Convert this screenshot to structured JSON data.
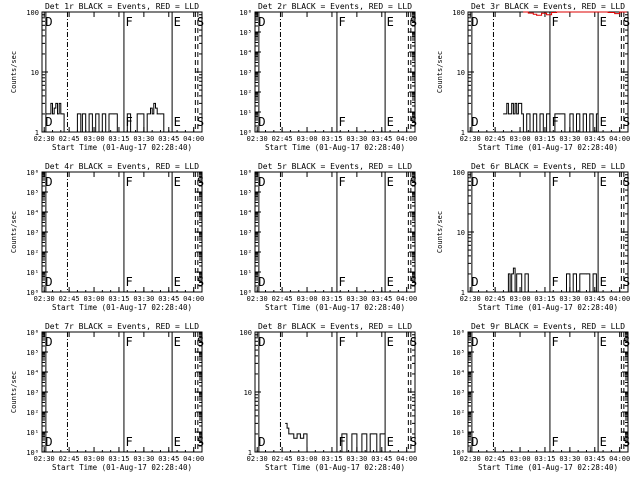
{
  "figure": {
    "xlabel": "Start Time (01-Aug-17 02:28:40)",
    "xticks": [
      "02:30",
      "02:45",
      "03:00",
      "03:15",
      "03:30",
      "03:45",
      "04:00"
    ],
    "vertical_markers": [
      {
        "label": "D",
        "time": "02:31",
        "style": "solid"
      },
      {
        "label": "",
        "time": "02:44",
        "style": "dash-dot"
      },
      {
        "label": "F",
        "time": "03:18",
        "style": "solid"
      },
      {
        "label": "E",
        "time": "03:47",
        "style": "solid"
      },
      {
        "label": "S",
        "time": "04:01",
        "style": "dashed"
      },
      {
        "label": "",
        "time": "04:02.5",
        "style": "dashed"
      }
    ],
    "colors": {
      "events": "#000000",
      "lld": "#dd0000"
    }
  },
  "chart_data": [
    {
      "type": "line",
      "title": "Det 1r BLACK = Events, RED = LLD",
      "ylabel": "Counts/sec",
      "yscale": "log",
      "ylim": [
        1,
        100
      ],
      "yticks": [
        "1",
        "10",
        "100"
      ],
      "xlim": [
        "02:28:40",
        "04:05"
      ],
      "series": [
        {
          "name": "Events",
          "color": "#000000",
          "x": [
            "02:31",
            "02:34",
            "02:35",
            "02:36",
            "02:37",
            "02:38",
            "02:39",
            "02:40",
            "02:41",
            "02:42",
            "02:48",
            "02:50",
            "02:52",
            "02:53",
            "02:55",
            "02:57",
            "02:59",
            "03:01",
            "03:03",
            "03:05",
            "03:07",
            "03:09",
            "03:12",
            "03:14",
            "03:18",
            "03:20",
            "03:22",
            "03:24",
            "03:26",
            "03:28",
            "03:30",
            "03:32",
            "03:34",
            "03:35",
            "03:36",
            "03:37",
            "03:38",
            "03:40",
            "03:42",
            "03:44"
          ],
          "y": [
            2,
            3,
            2,
            2.5,
            3,
            2,
            3,
            2,
            2,
            1,
            1,
            2,
            1,
            2,
            1,
            2,
            1,
            2,
            1,
            2,
            1,
            2,
            2,
            1,
            1,
            2,
            1,
            1,
            2,
            2,
            1,
            2,
            2.5,
            2,
            3,
            2.5,
            2,
            2,
            1,
            1
          ]
        }
      ]
    },
    {
      "type": "line",
      "title": "Det 2r BLACK = Events, RED = LLD",
      "ylabel": "",
      "yscale": "log",
      "ylim": [
        1,
        1000000
      ],
      "yticks": [
        "10⁰",
        "10¹",
        "10²",
        "10³",
        "10⁴",
        "10⁵",
        "10⁶"
      ],
      "xlim": [
        "02:28:40",
        "04:05"
      ],
      "series": []
    },
    {
      "type": "line",
      "title": "Det 3r BLACK = Events, RED = LLD",
      "ylabel": "Counts/sec",
      "yscale": "log",
      "ylim": [
        1,
        100
      ],
      "yticks": [
        "1",
        "10",
        "100"
      ],
      "xlim": [
        "02:28:40",
        "04:05"
      ],
      "series": [
        {
          "name": "Events",
          "color": "#000000",
          "x": [
            "02:50",
            "02:52",
            "02:53",
            "02:55",
            "02:56",
            "02:57",
            "02:58",
            "02:59",
            "03:00",
            "03:01",
            "03:02",
            "03:04",
            "03:06",
            "03:08",
            "03:10",
            "03:12",
            "03:14",
            "03:16",
            "03:18",
            "03:21",
            "03:24",
            "03:27",
            "03:30",
            "03:32",
            "03:34",
            "03:36",
            "03:38",
            "03:40",
            "03:42",
            "03:44",
            "03:46"
          ],
          "y": [
            2,
            3,
            2,
            3,
            2,
            3,
            2,
            3,
            3,
            2,
            1,
            2,
            1,
            2,
            1,
            2,
            1,
            2,
            1,
            2,
            2,
            1,
            2,
            1,
            2,
            1,
            2,
            1,
            2,
            1,
            2
          ]
        },
        {
          "name": "LLD",
          "color": "#dd0000",
          "x": [
            "03:02",
            "03:05",
            "03:08",
            "03:10",
            "03:13",
            "03:16",
            "03:19",
            "03:22",
            "03:25",
            "03:28",
            "03:31",
            "03:34",
            "03:37",
            "03:40",
            "03:43",
            "03:46",
            "03:49",
            "03:53",
            "03:57",
            "04:00",
            "04:03"
          ],
          "y": [
            100,
            96,
            92,
            88,
            95,
            90,
            98,
            100,
            100,
            100,
            100,
            100,
            100,
            100,
            100,
            100,
            100,
            98,
            94,
            100,
            100
          ]
        }
      ]
    },
    {
      "type": "line",
      "title": "Det 4r BLACK = Events, RED = LLD",
      "ylabel": "Counts/sec",
      "yscale": "log",
      "ylim": [
        1,
        1000000
      ],
      "yticks": [
        "10⁰",
        "10¹",
        "10²",
        "10³",
        "10⁴",
        "10⁵",
        "10⁶"
      ],
      "xlim": [
        "02:28:40",
        "04:05"
      ],
      "series": []
    },
    {
      "type": "line",
      "title": "Det 5r BLACK = Events, RED = LLD",
      "ylabel": "",
      "yscale": "log",
      "ylim": [
        1,
        1000000
      ],
      "yticks": [
        "10⁰",
        "10¹",
        "10²",
        "10³",
        "10⁴",
        "10⁵",
        "10⁶"
      ],
      "xlim": [
        "02:28:40",
        "04:05"
      ],
      "series": []
    },
    {
      "type": "line",
      "title": "Det 6r BLACK = Events, RED = LLD",
      "ylabel": "Counts/sec",
      "yscale": "log",
      "ylim": [
        1,
        100
      ],
      "yticks": [
        "1",
        "10",
        "100"
      ],
      "xlim": [
        "02:28:40",
        "04:05"
      ],
      "series": [
        {
          "name": "Events",
          "color": "#000000",
          "x": [
            "02:51",
            "02:53",
            "02:54",
            "02:55",
            "02:56",
            "02:57",
            "02:58",
            "02:59",
            "03:01",
            "03:03",
            "03:05",
            "03:07",
            "03:28",
            "03:30",
            "03:32",
            "03:34",
            "03:36",
            "03:40",
            "03:42",
            "03:44",
            "03:46"
          ],
          "y": [
            1,
            2,
            1,
            2,
            2.5,
            1,
            2,
            2,
            1,
            2,
            1,
            1,
            2,
            1,
            2,
            1,
            2,
            2,
            1,
            2,
            1
          ]
        }
      ]
    },
    {
      "type": "line",
      "title": "Det 7r BLACK = Events, RED = LLD",
      "ylabel": "Counts/sec",
      "yscale": "log",
      "ylim": [
        1,
        1000000
      ],
      "yticks": [
        "10⁰",
        "10¹",
        "10²",
        "10³",
        "10⁴",
        "10⁵",
        "10⁶"
      ],
      "xlim": [
        "02:28:40",
        "04:05"
      ],
      "series": []
    },
    {
      "type": "line",
      "title": "Det 8r BLACK = Events, RED = LLD",
      "ylabel": "",
      "yscale": "log",
      "ylim": [
        1,
        100
      ],
      "yticks": [
        "1",
        "10",
        "100"
      ],
      "xlim": [
        "02:28:40",
        "04:05"
      ],
      "series": [
        {
          "name": "Events",
          "color": "#000000",
          "x": [
            "02:47",
            "02:48",
            "02:49",
            "02:50",
            "02:52",
            "02:54",
            "02:56",
            "02:58",
            "03:00",
            "03:02",
            "03:05",
            "03:08",
            "03:12",
            "03:15",
            "03:18",
            "03:21",
            "03:24",
            "03:27",
            "03:30",
            "03:33",
            "03:36",
            "03:38",
            "03:40",
            "03:42",
            "03:44",
            "03:46"
          ],
          "y": [
            3,
            2.5,
            2,
            2,
            1.7,
            2,
            1.7,
            2,
            1,
            1,
            1,
            1,
            1,
            1,
            1,
            2,
            1,
            2,
            1,
            2,
            1,
            2,
            2,
            1,
            2,
            2
          ]
        }
      ]
    },
    {
      "type": "line",
      "title": "Det 9r BLACK = Events, RED = LLD",
      "ylabel": "",
      "yscale": "log",
      "ylim": [
        1,
        1000000
      ],
      "yticks": [
        "10⁰",
        "10¹",
        "10²",
        "10³",
        "10⁴",
        "10⁵",
        "10⁶"
      ],
      "xlim": [
        "02:28:40",
        "04:05"
      ],
      "series": []
    }
  ]
}
